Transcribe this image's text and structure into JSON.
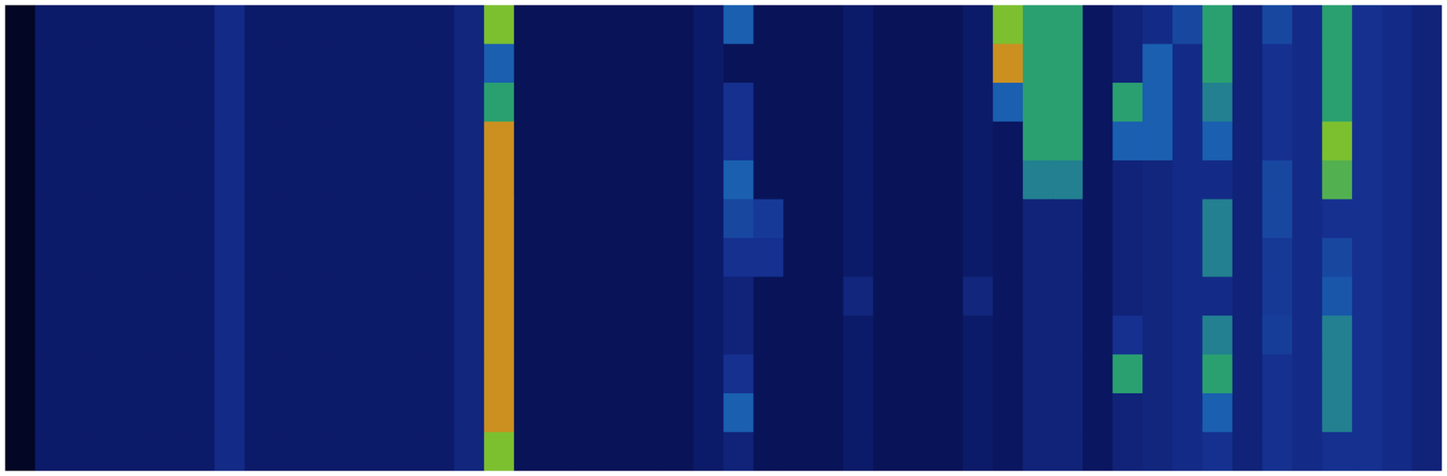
{
  "chart_data": {
    "type": "heatmap",
    "tick_labels": false,
    "color_range": [
      0,
      10
    ],
    "cells": [
      [
        0.5,
        2.2,
        2.2,
        2.2,
        2.2,
        2.2,
        2.2,
        2.8,
        2.2,
        2.2,
        2.2,
        2.2,
        2.2,
        2.2,
        2.2,
        2.6,
        6,
        1.8,
        1.8,
        1.8,
        1.8,
        1.8,
        1.8,
        2.2,
        4,
        1.8,
        1.8,
        1.8,
        2.2,
        1.8,
        1.8,
        1.8,
        2.2,
        6,
        5,
        5,
        2,
        2.5,
        2.8,
        3.5,
        5,
        2.5,
        3.5,
        2.8,
        5,
        3,
        2.8,
        2.5
      ],
      [
        0.5,
        2.2,
        2.2,
        2.2,
        2.2,
        2.2,
        2.2,
        2.8,
        2.2,
        2.2,
        2.2,
        2.2,
        2.2,
        2.2,
        2.2,
        2.6,
        4,
        1.8,
        1.8,
        1.8,
        1.8,
        1.8,
        1.8,
        2.2,
        1.8,
        1.8,
        1.8,
        1.8,
        2.2,
        1.8,
        1.8,
        1.8,
        2.2,
        8,
        5,
        5,
        2,
        2.5,
        4,
        2.8,
        5,
        2.5,
        3,
        2.8,
        5,
        3,
        2.8,
        2.5
      ],
      [
        0.5,
        2.2,
        2.2,
        2.2,
        2.2,
        2.2,
        2.2,
        2.8,
        2.2,
        2.2,
        2.2,
        2.2,
        2.2,
        2.2,
        2.2,
        2.6,
        5,
        1.8,
        1.8,
        1.8,
        1.8,
        1.8,
        1.8,
        2.2,
        3,
        1.8,
        1.8,
        1.8,
        2.2,
        1.8,
        1.8,
        1.8,
        2.2,
        4,
        5,
        5,
        2,
        5,
        4,
        2.8,
        4.5,
        2.5,
        3,
        2.8,
        5,
        3,
        2.8,
        2.5
      ],
      [
        0.5,
        2.2,
        2.2,
        2.2,
        2.2,
        2.2,
        2.2,
        2.8,
        2.2,
        2.2,
        2.2,
        2.2,
        2.2,
        2.2,
        2.2,
        2.6,
        8,
        1.8,
        1.8,
        1.8,
        1.8,
        1.8,
        1.8,
        2.2,
        3,
        1.8,
        1.8,
        1.8,
        2.2,
        1.8,
        1.8,
        1.8,
        2.2,
        2,
        5,
        5,
        2,
        4,
        4,
        2.8,
        4,
        2.5,
        3,
        2.8,
        6,
        3,
        2.8,
        2.5
      ],
      [
        0.5,
        2.2,
        2.2,
        2.2,
        2.2,
        2.2,
        2.2,
        2.8,
        2.2,
        2.2,
        2.2,
        2.2,
        2.2,
        2.2,
        2.2,
        2.6,
        8,
        1.8,
        1.8,
        1.8,
        1.8,
        1.8,
        1.8,
        2.2,
        4,
        1.8,
        1.8,
        1.8,
        2.2,
        1.8,
        1.8,
        1.8,
        2.2,
        2,
        4.5,
        4.5,
        2,
        2.5,
        2.6,
        2.8,
        2.8,
        2.5,
        3.5,
        2.8,
        5.5,
        3,
        2.8,
        2.5
      ],
      [
        0.5,
        2.2,
        2.2,
        2.2,
        2.2,
        2.2,
        2.2,
        2.8,
        2.2,
        2.2,
        2.2,
        2.2,
        2.2,
        2.2,
        2.2,
        2.6,
        8,
        1.8,
        1.8,
        1.8,
        1.8,
        1.8,
        1.8,
        2.2,
        3.5,
        3.2,
        1.8,
        1.8,
        2.2,
        1.8,
        1.8,
        1.8,
        2.2,
        2,
        2.5,
        2.5,
        2,
        2.5,
        2.6,
        2.8,
        4.5,
        2.5,
        3.5,
        2.8,
        3,
        3,
        2.8,
        2.5
      ],
      [
        0.5,
        2.2,
        2.2,
        2.2,
        2.2,
        2.2,
        2.2,
        2.8,
        2.2,
        2.2,
        2.2,
        2.2,
        2.2,
        2.2,
        2.2,
        2.6,
        8,
        1.8,
        1.8,
        1.8,
        1.8,
        1.8,
        1.8,
        2.2,
        3,
        3,
        1.8,
        1.8,
        2.2,
        1.8,
        1.8,
        1.8,
        2.2,
        2,
        2.5,
        2.5,
        2,
        2.5,
        2.6,
        2.8,
        4.5,
        2.5,
        3.2,
        2.8,
        3.5,
        3,
        2.8,
        2.5
      ],
      [
        0.5,
        2.2,
        2.2,
        2.2,
        2.2,
        2.2,
        2.2,
        2.8,
        2.2,
        2.2,
        2.2,
        2.2,
        2.2,
        2.2,
        2.2,
        2.6,
        8,
        1.8,
        1.8,
        1.8,
        1.8,
        1.8,
        1.8,
        2.2,
        2.5,
        1.8,
        1.8,
        1.8,
        2.6,
        1.8,
        1.8,
        1.8,
        2.6,
        2,
        2.5,
        2.5,
        2,
        2.5,
        2.6,
        2.8,
        2.8,
        2.5,
        3.2,
        2.8,
        3.8,
        3,
        2.8,
        2.5
      ],
      [
        0.5,
        2.2,
        2.2,
        2.2,
        2.2,
        2.2,
        2.2,
        2.8,
        2.2,
        2.2,
        2.2,
        2.2,
        2.2,
        2.2,
        2.2,
        2.6,
        8,
        1.8,
        1.8,
        1.8,
        1.8,
        1.8,
        1.8,
        2.2,
        2.5,
        1.8,
        1.8,
        1.8,
        2.2,
        1.8,
        1.8,
        1.8,
        2.2,
        2,
        2.5,
        2.5,
        2,
        3,
        2.6,
        2.8,
        4.5,
        2.5,
        3.3,
        2.8,
        4.5,
        3,
        2.8,
        2.5
      ],
      [
        0.5,
        2.2,
        2.2,
        2.2,
        2.2,
        2.2,
        2.2,
        2.8,
        2.2,
        2.2,
        2.2,
        2.2,
        2.2,
        2.2,
        2.2,
        2.6,
        8,
        1.8,
        1.8,
        1.8,
        1.8,
        1.8,
        1.8,
        2.2,
        3,
        1.8,
        1.8,
        1.8,
        2.2,
        1.8,
        1.8,
        1.8,
        2.2,
        2,
        2.5,
        2.5,
        2,
        5,
        2.6,
        2.8,
        5,
        2.5,
        3,
        2.8,
        4.5,
        3,
        2.8,
        2.5
      ],
      [
        0.5,
        2.2,
        2.2,
        2.2,
        2.2,
        2.2,
        2.2,
        2.8,
        2.2,
        2.2,
        2.2,
        2.2,
        2.2,
        2.2,
        2.2,
        2.6,
        8,
        1.8,
        1.8,
        1.8,
        1.8,
        1.8,
        1.8,
        2.2,
        4,
        1.8,
        1.8,
        1.8,
        2.2,
        1.8,
        1.8,
        1.8,
        2.2,
        2,
        2.5,
        2.5,
        2,
        2.5,
        2.6,
        2.8,
        4,
        2.5,
        3,
        2.8,
        4.5,
        3,
        2.8,
        2.5
      ],
      [
        0.5,
        2.2,
        2.2,
        2.2,
        2.2,
        2.2,
        2.2,
        2.8,
        2.2,
        2.2,
        2.2,
        2.2,
        2.2,
        2.2,
        2.2,
        2.6,
        6,
        1.8,
        1.8,
        1.8,
        1.8,
        1.8,
        1.8,
        2.2,
        2.5,
        1.8,
        1.8,
        1.8,
        2.2,
        1.8,
        1.8,
        1.8,
        2.2,
        2,
        2.5,
        2.5,
        2,
        2.5,
        2.6,
        2.8,
        3,
        2.5,
        3,
        2.8,
        3,
        3,
        2.8,
        2.5
      ]
    ]
  }
}
